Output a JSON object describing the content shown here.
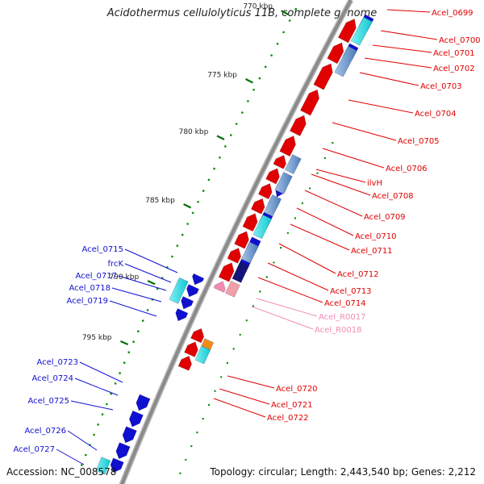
{
  "title": "Acidothermus cellulolyticus 11B, complete genome",
  "footer": {
    "accession": "Accession: NC_008578",
    "summary": "Topology: circular; Length: 2,443,540 bp; Genes: 2,212"
  },
  "ticks": [
    {
      "label": "770 kbp"
    },
    {
      "label": "775 kbp"
    },
    {
      "label": "780 kbp"
    },
    {
      "label": "785 kbp"
    },
    {
      "label": "790 kbp"
    },
    {
      "label": "795 kbp"
    }
  ],
  "genes": [
    {
      "label": "Acel_0699",
      "strand": "plus",
      "color": "#e00000"
    },
    {
      "label": "Acel_0700",
      "strand": "plus",
      "color": "#e00000"
    },
    {
      "label": "Acel_0701",
      "strand": "plus",
      "color": "#e00000"
    },
    {
      "label": "Acel_0702",
      "strand": "plus",
      "color": "#e00000"
    },
    {
      "label": "Acel_0703",
      "strand": "plus",
      "color": "#e00000"
    },
    {
      "label": "Acel_0704",
      "strand": "plus",
      "color": "#e00000"
    },
    {
      "label": "Acel_0705",
      "strand": "plus",
      "color": "#e00000"
    },
    {
      "label": "Acel_0706",
      "strand": "plus",
      "color": "#e00000"
    },
    {
      "label": "ilvH",
      "strand": "plus",
      "color": "#e00000"
    },
    {
      "label": "Acel_0708",
      "strand": "plus",
      "color": "#e00000"
    },
    {
      "label": "Acel_0709",
      "strand": "plus",
      "color": "#e00000"
    },
    {
      "label": "Acel_0710",
      "strand": "plus",
      "color": "#e00000"
    },
    {
      "label": "Acel_0711",
      "strand": "plus",
      "color": "#e00000"
    },
    {
      "label": "Acel_0712",
      "strand": "plus",
      "color": "#e00000"
    },
    {
      "label": "Acel_0713",
      "strand": "plus",
      "color": "#e00000"
    },
    {
      "label": "Acel_0714",
      "strand": "plus",
      "color": "#e00000"
    },
    {
      "label": "Acel_R0017",
      "strand": "plus",
      "color": "#f08cb4"
    },
    {
      "label": "Acel_R0018",
      "strand": "plus",
      "color": "#f08cb4"
    },
    {
      "label": "Acel_0720",
      "strand": "plus",
      "color": "#e00000"
    },
    {
      "label": "Acel_0721",
      "strand": "plus",
      "color": "#e00000"
    },
    {
      "label": "Acel_0722",
      "strand": "plus",
      "color": "#e00000"
    },
    {
      "label": "Acel_0715",
      "strand": "minus",
      "color": "#1010d0"
    },
    {
      "label": "frcK",
      "strand": "minus",
      "color": "#1010d0"
    },
    {
      "label": "Acel_0717",
      "strand": "minus",
      "color": "#1010d0"
    },
    {
      "label": "Acel_0718",
      "strand": "minus",
      "color": "#1010d0"
    },
    {
      "label": "Acel_0719",
      "strand": "minus",
      "color": "#1010d0"
    },
    {
      "label": "Acel_0723",
      "strand": "minus",
      "color": "#1010d0"
    },
    {
      "label": "Acel_0724",
      "strand": "minus",
      "color": "#1010d0"
    },
    {
      "label": "Acel_0725",
      "strand": "minus",
      "color": "#1010d0"
    },
    {
      "label": "Acel_0726",
      "strand": "minus",
      "color": "#1010d0"
    },
    {
      "label": "Acel_0727",
      "strand": "minus",
      "color": "#1010d0"
    }
  ],
  "colors": {
    "backbone": "#8a8a8a",
    "plus_cds": "#e00000",
    "minus_cds": "#1010d0",
    "rna": "#f08cb4",
    "blast_cyan": "#14d8e0",
    "blast_steel": "#5a8cc8",
    "blast_navy": "#141478",
    "tick": "#007000",
    "dots": "#009000"
  }
}
